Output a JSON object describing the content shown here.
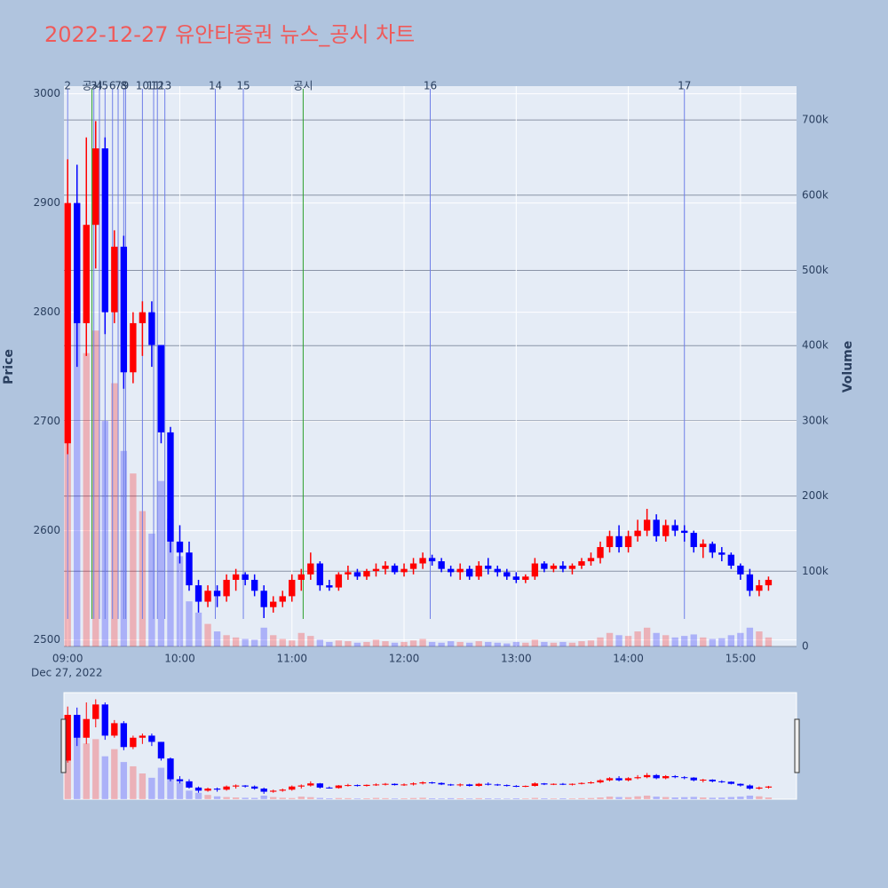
{
  "chart_data": {
    "type": "candlestick",
    "title": "2022-12-27 유안타증권 뉴스_공시 차트",
    "y_label": "Price",
    "y2_label": "Volume",
    "x_date_label": "Dec 27, 2022",
    "up_color": "#ff0000",
    "down_color": "#0000ff",
    "x": [
      "09:00",
      "09:05",
      "09:10",
      "09:15",
      "09:20",
      "09:25",
      "09:30",
      "09:35",
      "09:40",
      "09:45",
      "09:50",
      "09:55",
      "10:00",
      "10:05",
      "10:10",
      "10:15",
      "10:20",
      "10:25",
      "10:30",
      "10:35",
      "10:40",
      "10:45",
      "10:50",
      "10:55",
      "11:00",
      "11:05",
      "11:10",
      "11:15",
      "11:20",
      "11:25",
      "11:30",
      "11:35",
      "11:40",
      "11:45",
      "11:50",
      "11:55",
      "12:00",
      "12:05",
      "12:10",
      "12:15",
      "12:20",
      "12:25",
      "12:30",
      "12:35",
      "12:40",
      "12:45",
      "12:50",
      "12:55",
      "13:00",
      "13:05",
      "13:10",
      "13:15",
      "13:20",
      "13:25",
      "13:30",
      "13:35",
      "13:40",
      "13:45",
      "13:50",
      "13:55",
      "14:00",
      "14:05",
      "14:10",
      "14:15",
      "14:20",
      "14:25",
      "14:30",
      "14:35",
      "14:40",
      "14:45",
      "14:50",
      "14:55",
      "15:00",
      "15:05",
      "15:10",
      "15:15"
    ],
    "open": [
      2680,
      2900,
      2790,
      2880,
      2950,
      2800,
      2860,
      2745,
      2790,
      2800,
      2770,
      2690,
      2590,
      2580,
      2550,
      2535,
      2545,
      2540,
      2555,
      2560,
      2555,
      2545,
      2530,
      2535,
      2540,
      2555,
      2560,
      2570,
      2550,
      2548,
      2560,
      2562,
      2558,
      2563,
      2565,
      2568,
      2562,
      2565,
      2570,
      2575,
      2572,
      2565,
      2562,
      2565,
      2558,
      2568,
      2565,
      2562,
      2558,
      2555,
      2558,
      2570,
      2565,
      2568,
      2565,
      2568,
      2572,
      2575,
      2585,
      2595,
      2585,
      2595,
      2600,
      2610,
      2595,
      2605,
      2600,
      2598,
      2585,
      2588,
      2580,
      2578,
      2568,
      2560,
      2545,
      2550
    ],
    "high": [
      2940,
      2935,
      2960,
      2975,
      2960,
      2875,
      2870,
      2800,
      2810,
      2810,
      2770,
      2695,
      2605,
      2590,
      2555,
      2550,
      2550,
      2560,
      2565,
      2562,
      2560,
      2550,
      2540,
      2545,
      2560,
      2565,
      2580,
      2572,
      2555,
      2562,
      2568,
      2565,
      2565,
      2570,
      2572,
      2570,
      2570,
      2575,
      2580,
      2578,
      2575,
      2568,
      2570,
      2568,
      2572,
      2575,
      2568,
      2565,
      2562,
      2560,
      2575,
      2572,
      2570,
      2572,
      2570,
      2575,
      2580,
      2590,
      2600,
      2605,
      2600,
      2610,
      2620,
      2615,
      2610,
      2610,
      2605,
      2600,
      2592,
      2590,
      2585,
      2580,
      2570,
      2565,
      2555,
      2558
    ],
    "low": [
      2670,
      2750,
      2760,
      2840,
      2780,
      2790,
      2730,
      2735,
      2760,
      2750,
      2680,
      2580,
      2570,
      2545,
      2525,
      2530,
      2530,
      2535,
      2545,
      2550,
      2540,
      2520,
      2525,
      2530,
      2535,
      2545,
      2555,
      2545,
      2545,
      2545,
      2555,
      2555,
      2555,
      2558,
      2560,
      2560,
      2558,
      2560,
      2565,
      2568,
      2562,
      2558,
      2555,
      2555,
      2555,
      2560,
      2558,
      2555,
      2552,
      2552,
      2555,
      2562,
      2562,
      2562,
      2560,
      2565,
      2568,
      2570,
      2580,
      2580,
      2580,
      2590,
      2595,
      2590,
      2590,
      2595,
      2590,
      2580,
      2575,
      2575,
      2572,
      2565,
      2555,
      2540,
      2540,
      2545
    ],
    "close": [
      2900,
      2790,
      2880,
      2950,
      2800,
      2860,
      2745,
      2790,
      2800,
      2770,
      2690,
      2590,
      2580,
      2550,
      2535,
      2545,
      2540,
      2555,
      2560,
      2555,
      2545,
      2530,
      2535,
      2540,
      2555,
      2560,
      2570,
      2550,
      2548,
      2560,
      2562,
      2558,
      2563,
      2565,
      2568,
      2562,
      2565,
      2570,
      2575,
      2572,
      2565,
      2562,
      2565,
      2558,
      2568,
      2565,
      2562,
      2558,
      2555,
      2558,
      2570,
      2565,
      2568,
      2565,
      2568,
      2572,
      2575,
      2585,
      2595,
      2585,
      2595,
      2600,
      2610,
      2595,
      2605,
      2600,
      2598,
      2585,
      2588,
      2580,
      2578,
      2568,
      2560,
      2545,
      2550,
      2555
    ],
    "volume": [
      460000,
      530000,
      390000,
      420000,
      300000,
      350000,
      260000,
      230000,
      180000,
      150000,
      220000,
      170000,
      120000,
      60000,
      45000,
      30000,
      20000,
      15000,
      12000,
      10000,
      9000,
      25000,
      15000,
      10000,
      8000,
      18000,
      14000,
      9000,
      6000,
      8000,
      7000,
      5000,
      6000,
      9000,
      7000,
      5000,
      6000,
      8000,
      10000,
      6000,
      5000,
      7000,
      6000,
      5000,
      7000,
      6000,
      5000,
      4000,
      6000,
      5000,
      9000,
      6000,
      5000,
      6000,
      5000,
      7000,
      8000,
      12000,
      18000,
      15000,
      14000,
      20000,
      25000,
      18000,
      15000,
      12000,
      14000,
      16000,
      12000,
      10000,
      11000,
      15000,
      18000,
      25000,
      20000,
      12000
    ],
    "ylim": [
      2494,
      3007
    ],
    "yticks": [
      2500,
      2600,
      2700,
      2800,
      2900,
      3000
    ],
    "y2lim": [
      0,
      745000
    ],
    "y2ticks": [
      0,
      {
        "value": 100000,
        "label": "100k"
      },
      {
        "value": 200000,
        "label": "200k"
      },
      {
        "value": 300000,
        "label": "300k"
      },
      {
        "value": 400000,
        "label": "400k"
      },
      {
        "value": 500000,
        "label": "500k"
      },
      {
        "value": 600000,
        "label": "600k"
      },
      {
        "value": 700000,
        "label": "700k"
      }
    ],
    "xlim": [
      "08:58",
      "15:30"
    ],
    "xticks": [
      "09:00",
      "10:00",
      "11:00",
      "12:00",
      "13:00",
      "14:00",
      "15:00"
    ],
    "events": [
      {
        "label": "2",
        "x": "09:00",
        "color": "#6f7fe8"
      },
      {
        "label": "공시",
        "x": "09:13",
        "color": "#2ca02c"
      },
      {
        "label": "3",
        "x": "09:14",
        "color": "#6f7fe8"
      },
      {
        "label": "4",
        "x": "09:17",
        "color": "#6f7fe8"
      },
      {
        "label": "5",
        "x": "09:20",
        "color": "#6f7fe8"
      },
      {
        "label": "6",
        "x": "09:24",
        "color": "#6f7fe8"
      },
      {
        "label": "7",
        "x": "09:27",
        "color": "#6f7fe8"
      },
      {
        "label": "8",
        "x": "09:30",
        "color": "#6f7fe8"
      },
      {
        "label": "9",
        "x": "09:31",
        "color": "#6f7fe8"
      },
      {
        "label": "10",
        "x": "09:40",
        "color": "#6f7fe8"
      },
      {
        "label": "11",
        "x": "09:46",
        "color": "#6f7fe8"
      },
      {
        "label": "12",
        "x": "09:48",
        "color": "#6f7fe8"
      },
      {
        "label": "13",
        "x": "09:52",
        "color": "#6f7fe8"
      },
      {
        "label": "14",
        "x": "10:19",
        "color": "#6f7fe8"
      },
      {
        "label": "15",
        "x": "10:34",
        "color": "#6f7fe8"
      },
      {
        "label": "공시",
        "x": "11:06",
        "color": "#2ca02c"
      },
      {
        "label": "16",
        "x": "12:14",
        "color": "#6f7fe8"
      },
      {
        "label": "17",
        "x": "14:30",
        "color": "#6f7fe8"
      }
    ]
  }
}
